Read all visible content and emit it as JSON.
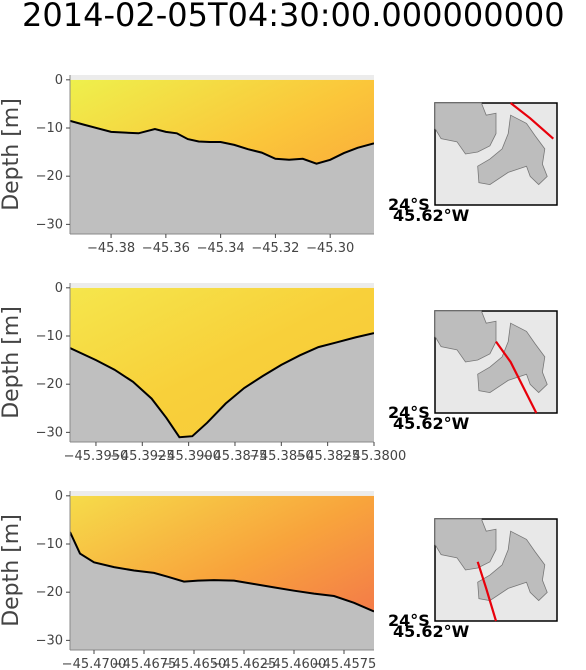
{
  "title": "2014-02-05T04:30:00.000000000",
  "colors": {
    "background": "#ffffff",
    "seabed": "#bfbfbf",
    "bathymetry_line": "#000000",
    "land": "#bdbdbd",
    "sea_inset": "#e8e8e8",
    "transect_line": "#e8000b",
    "field_low": "#eef04c",
    "field_mid": "#f8b23c",
    "field_high": "#f2784b"
  },
  "chart_data": [
    {
      "type": "area",
      "ylabel": "Depth [m]",
      "ylim": [
        -32,
        1
      ],
      "yticks": [
        0,
        -10,
        -20,
        -30
      ],
      "ytick_labels": [
        "0",
        "−10",
        "−20",
        "−30"
      ],
      "xlim": [
        -45.395,
        -45.284
      ],
      "xticks": [
        -45.38,
        -45.36,
        -45.34,
        -45.32,
        -45.3
      ],
      "xtick_labels": [
        "−45.38",
        "−45.36",
        "−45.34",
        "−45.32",
        "−45.30"
      ],
      "bathymetry": {
        "x": [
          -45.395,
          -45.39,
          -45.38,
          -45.37,
          -45.364,
          -45.36,
          -45.356,
          -45.352,
          -45.348,
          -45.344,
          -45.34,
          -45.335,
          -45.33,
          -45.325,
          -45.32,
          -45.315,
          -45.31,
          -45.305,
          -45.3,
          -45.295,
          -45.29,
          -45.284
        ],
        "y": [
          -8.5,
          -9.3,
          -10.8,
          -11.1,
          -10.2,
          -10.8,
          -11.1,
          -12.3,
          -12.8,
          -12.9,
          -12.9,
          -13.5,
          -14.4,
          -15.1,
          -16.4,
          -16.6,
          -16.4,
          -17.4,
          -16.6,
          -15.2,
          -14.1,
          -13.2
        ]
      },
      "field_gradient": [
        "#eef04c",
        "#fbc63a",
        "#f89c3c"
      ],
      "inset": {
        "lat_label": "24°S",
        "lon_label": "45.62°W",
        "transect": [
          [
            0.62,
            0.0
          ],
          [
            0.78,
            0.15
          ],
          [
            0.97,
            0.35
          ]
        ]
      }
    },
    {
      "type": "area",
      "ylabel": "Depth [m]",
      "ylim": [
        -32,
        1
      ],
      "yticks": [
        0,
        -10,
        -20,
        -30
      ],
      "ytick_labels": [
        "0",
        "−10",
        "−20",
        "−30"
      ],
      "xlim": [
        -45.3964,
        -45.38
      ],
      "xticks": [
        -45.395,
        -45.3925,
        -45.39,
        -45.3875,
        -45.385,
        -45.3825,
        -45.38
      ],
      "xtick_labels": [
        "−45.3950",
        "−45.3925",
        "−45.3900",
        "−45.3875",
        "−45.3850",
        "−45.3825",
        "−45.3800"
      ],
      "bathymetry": {
        "x": [
          -45.3964,
          -45.395,
          -45.394,
          -45.393,
          -45.392,
          -45.3912,
          -45.3905,
          -45.3898,
          -45.389,
          -45.388,
          -45.387,
          -45.386,
          -45.385,
          -45.384,
          -45.383,
          -45.382,
          -45.381,
          -45.38
        ],
        "y": [
          -12.5,
          -15.0,
          -17.0,
          -19.5,
          -23.0,
          -27.0,
          -31.0,
          -30.8,
          -28.0,
          -24.0,
          -20.8,
          -18.3,
          -16.0,
          -14.0,
          -12.3,
          -11.3,
          -10.3,
          -9.4
        ]
      },
      "field_gradient": [
        "#f5e64c",
        "#f8d03a",
        "#f6c83c"
      ],
      "inset": {
        "lat_label": "24°S",
        "lon_label": "45.62°W",
        "transect": [
          [
            0.5,
            0.3
          ],
          [
            0.62,
            0.5
          ],
          [
            0.83,
            1.0
          ]
        ]
      }
    },
    {
      "type": "area",
      "ylabel": "Depth [m]",
      "ylim": [
        -32,
        1
      ],
      "yticks": [
        0,
        -10,
        -20,
        -30
      ],
      "ytick_labels": [
        "0",
        "−10",
        "−20",
        "−30"
      ],
      "xlim": [
        -45.4712,
        -45.456
      ],
      "xticks": [
        -45.47,
        -45.4675,
        -45.465,
        -45.4625,
        -45.46,
        -45.4575
      ],
      "xtick_labels": [
        "−45.4700",
        "−45.4675",
        "−45.4650",
        "−45.4625",
        "−45.4600",
        "−45.4575"
      ],
      "bathymetry": {
        "x": [
          -45.4712,
          -45.4707,
          -45.47,
          -45.469,
          -45.468,
          -45.467,
          -45.4663,
          -45.4655,
          -45.4648,
          -45.464,
          -45.463,
          -45.462,
          -45.461,
          -45.46,
          -45.459,
          -45.458,
          -45.457,
          -45.456
        ],
        "y": [
          -7.5,
          -12.0,
          -13.8,
          -14.8,
          -15.5,
          -16.0,
          -16.8,
          -17.8,
          -17.6,
          -17.5,
          -17.6,
          -18.3,
          -19.0,
          -19.7,
          -20.3,
          -20.8,
          -22.2,
          -24.0
        ]
      },
      "field_gradient": [
        "#f6dc4a",
        "#f8a43c",
        "#f26e4c"
      ],
      "inset": {
        "lat_label": "24°S",
        "lon_label": "45.62°W",
        "transect": [
          [
            0.35,
            0.42
          ],
          [
            0.42,
            0.68
          ],
          [
            0.5,
            1.0
          ]
        ]
      }
    }
  ]
}
